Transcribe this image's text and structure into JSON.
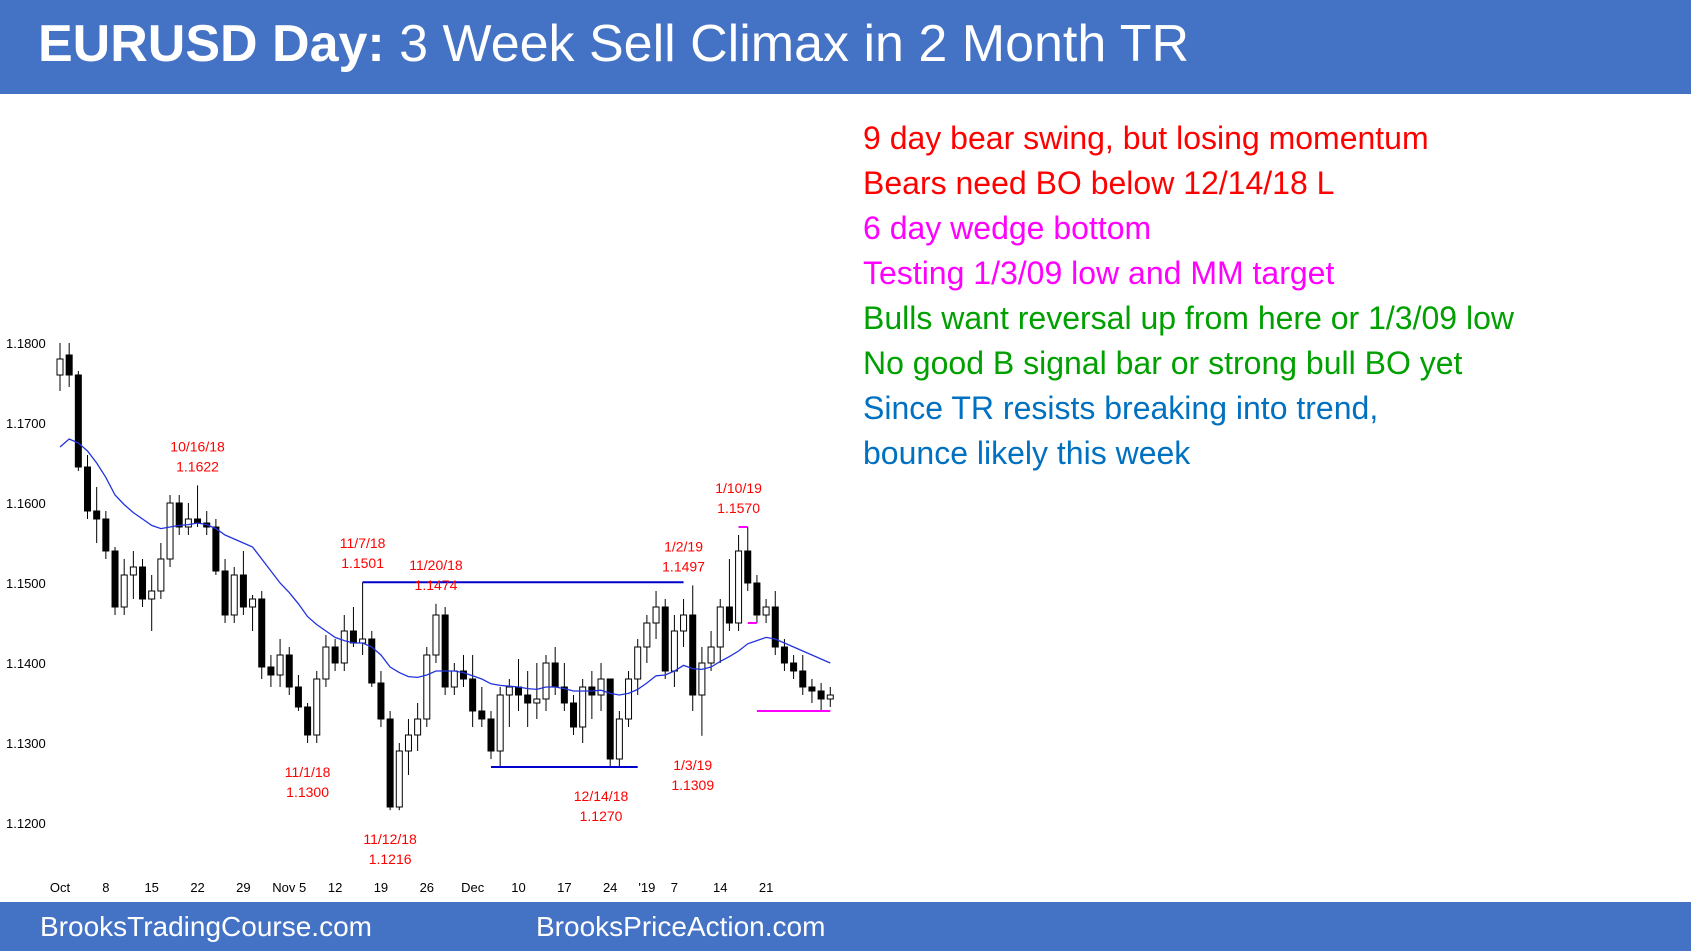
{
  "header": {
    "title_bold": "EURUSD Day:",
    "title_rest": " 3 Week Sell Climax in 2 Month TR"
  },
  "footer": {
    "left": "BrooksTradingCourse.com",
    "right": "BrooksPriceAction.com"
  },
  "notes": [
    {
      "text": "9 day bear swing, but losing momentum",
      "color": "#FF0000"
    },
    {
      "text": "Bears need BO below 12/14/18 L",
      "color": "#FF0000"
    },
    {
      "text": "6 day wedge bottom",
      "color": "#FF00FF"
    },
    {
      "text": "Testing 1/3/09 low and MM target",
      "color": "#FF00FF"
    },
    {
      "text": "Bulls want reversal up from here or 1/3/09 low",
      "color": "#00A000"
    },
    {
      "text": "No good B signal bar or strong bull BO yet",
      "color": "#00A000"
    },
    {
      "text": "Since TR resists breaking into trend,",
      "color": "#0070C0"
    },
    {
      "text": "bounce likely this week",
      "color": "#0070C0"
    }
  ],
  "chart_data": {
    "type": "candlestick",
    "ylim": [
      1.12,
      1.18
    ],
    "y_ticks": [
      "1.1800",
      "1.1700",
      "1.1600",
      "1.1500",
      "1.1400",
      "1.1300",
      "1.1200"
    ],
    "x_ticks": [
      {
        "label": "Oct",
        "i": 0
      },
      {
        "label": "8",
        "i": 5
      },
      {
        "label": "15",
        "i": 10
      },
      {
        "label": "22",
        "i": 15
      },
      {
        "label": "29",
        "i": 20
      },
      {
        "label": "Nov 5",
        "i": 25
      },
      {
        "label": "12",
        "i": 30
      },
      {
        "label": "19",
        "i": 35
      },
      {
        "label": "26",
        "i": 40
      },
      {
        "label": "Dec",
        "i": 45
      },
      {
        "label": "10",
        "i": 50
      },
      {
        "label": "17",
        "i": 55
      },
      {
        "label": "24",
        "i": 60
      },
      {
        "label": "'19",
        "i": 64
      },
      {
        "label": "7",
        "i": 67
      },
      {
        "label": "14",
        "i": 72
      },
      {
        "label": "21",
        "i": 77
      }
    ],
    "ohlc": [
      [
        1.176,
        1.18,
        1.174,
        1.178
      ],
      [
        1.1785,
        1.18,
        1.1745,
        1.176
      ],
      [
        1.176,
        1.1765,
        1.164,
        1.1645
      ],
      [
        1.1645,
        1.166,
        1.158,
        1.159
      ],
      [
        1.159,
        1.162,
        1.155,
        1.158
      ],
      [
        1.158,
        1.159,
        1.153,
        1.154
      ],
      [
        1.154,
        1.1545,
        1.146,
        1.147
      ],
      [
        1.147,
        1.153,
        1.146,
        1.151
      ],
      [
        1.151,
        1.154,
        1.148,
        1.152
      ],
      [
        1.152,
        1.153,
        1.147,
        1.148
      ],
      [
        1.148,
        1.151,
        1.144,
        1.149
      ],
      [
        1.149,
        1.155,
        1.148,
        1.153
      ],
      [
        1.153,
        1.161,
        1.152,
        1.16
      ],
      [
        1.16,
        1.161,
        1.156,
        1.157
      ],
      [
        1.157,
        1.16,
        1.156,
        1.158
      ],
      [
        1.158,
        1.1622,
        1.157,
        1.1575
      ],
      [
        1.1575,
        1.159,
        1.156,
        1.157
      ],
      [
        1.157,
        1.158,
        1.151,
        1.1515
      ],
      [
        1.1515,
        1.153,
        1.145,
        1.146
      ],
      [
        1.146,
        1.152,
        1.145,
        1.151
      ],
      [
        1.151,
        1.154,
        1.146,
        1.147
      ],
      [
        1.147,
        1.1485,
        1.144,
        1.148
      ],
      [
        1.148,
        1.149,
        1.138,
        1.1395
      ],
      [
        1.1395,
        1.141,
        1.137,
        1.1385
      ],
      [
        1.1385,
        1.143,
        1.137,
        1.141
      ],
      [
        1.141,
        1.142,
        1.136,
        1.137
      ],
      [
        1.137,
        1.1385,
        1.134,
        1.1345
      ],
      [
        1.1345,
        1.135,
        1.13,
        1.131
      ],
      [
        1.131,
        1.139,
        1.13,
        1.138
      ],
      [
        1.138,
        1.1435,
        1.137,
        1.142
      ],
      [
        1.142,
        1.143,
        1.139,
        1.14
      ],
      [
        1.14,
        1.146,
        1.139,
        1.144
      ],
      [
        1.144,
        1.147,
        1.142,
        1.1425
      ],
      [
        1.1425,
        1.1501,
        1.141,
        1.143
      ],
      [
        1.143,
        1.144,
        1.137,
        1.1375
      ],
      [
        1.1375,
        1.139,
        1.132,
        1.133
      ],
      [
        1.133,
        1.134,
        1.1216,
        1.122
      ],
      [
        1.122,
        1.13,
        1.1216,
        1.129
      ],
      [
        1.129,
        1.133,
        1.126,
        1.131
      ],
      [
        1.131,
        1.135,
        1.129,
        1.133
      ],
      [
        1.133,
        1.142,
        1.132,
        1.141
      ],
      [
        1.141,
        1.1474,
        1.14,
        1.146
      ],
      [
        1.146,
        1.147,
        1.136,
        1.137
      ],
      [
        1.137,
        1.14,
        1.136,
        1.139
      ],
      [
        1.139,
        1.141,
        1.137,
        1.138
      ],
      [
        1.138,
        1.141,
        1.132,
        1.134
      ],
      [
        1.134,
        1.137,
        1.132,
        1.133
      ],
      [
        1.133,
        1.134,
        1.128,
        1.129
      ],
      [
        1.129,
        1.137,
        1.127,
        1.136
      ],
      [
        1.136,
        1.138,
        1.132,
        1.137
      ],
      [
        1.137,
        1.1405,
        1.134,
        1.136
      ],
      [
        1.136,
        1.139,
        1.132,
        1.135
      ],
      [
        1.135,
        1.14,
        1.133,
        1.1355
      ],
      [
        1.1355,
        1.141,
        1.134,
        1.14
      ],
      [
        1.14,
        1.142,
        1.136,
        1.137
      ],
      [
        1.137,
        1.14,
        1.134,
        1.135
      ],
      [
        1.135,
        1.136,
        1.131,
        1.132
      ],
      [
        1.132,
        1.138,
        1.13,
        1.137
      ],
      [
        1.137,
        1.139,
        1.133,
        1.136
      ],
      [
        1.136,
        1.14,
        1.134,
        1.138
      ],
      [
        1.138,
        1.138,
        1.127,
        1.128
      ],
      [
        1.128,
        1.134,
        1.127,
        1.133
      ],
      [
        1.133,
        1.139,
        1.132,
        1.138
      ],
      [
        1.138,
        1.143,
        1.136,
        1.142
      ],
      [
        1.142,
        1.146,
        1.14,
        1.145
      ],
      [
        1.145,
        1.149,
        1.143,
        1.147
      ],
      [
        1.147,
        1.148,
        1.138,
        1.139
      ],
      [
        1.139,
        1.146,
        1.137,
        1.144
      ],
      [
        1.144,
        1.148,
        1.142,
        1.146
      ],
      [
        1.146,
        1.1497,
        1.134,
        1.136
      ],
      [
        1.136,
        1.142,
        1.1309,
        1.14
      ],
      [
        1.14,
        1.144,
        1.139,
        1.142
      ],
      [
        1.142,
        1.148,
        1.14,
        1.147
      ],
      [
        1.147,
        1.153,
        1.144,
        1.145
      ],
      [
        1.145,
        1.156,
        1.144,
        1.154
      ],
      [
        1.154,
        1.157,
        1.149,
        1.15
      ],
      [
        1.15,
        1.151,
        1.145,
        1.146
      ],
      [
        1.146,
        1.148,
        1.145,
        1.147
      ],
      [
        1.147,
        1.149,
        1.141,
        1.142
      ],
      [
        1.142,
        1.143,
        1.139,
        1.14
      ],
      [
        1.14,
        1.141,
        1.138,
        1.139
      ],
      [
        1.139,
        1.141,
        1.136,
        1.137
      ],
      [
        1.137,
        1.138,
        1.135,
        1.1365
      ],
      [
        1.1365,
        1.1375,
        1.134,
        1.1355
      ],
      [
        1.1355,
        1.137,
        1.1345,
        1.136
      ]
    ],
    "ema": [
      1.167,
      1.168,
      1.1675,
      1.1665,
      1.165,
      1.1632,
      1.161,
      1.1598,
      1.1588,
      1.158,
      1.1572,
      1.1568,
      1.157,
      1.1572,
      1.1573,
      1.1575,
      1.1573,
      1.1568,
      1.156,
      1.1555,
      1.155,
      1.1545,
      1.153,
      1.1515,
      1.15,
      1.1488,
      1.1474,
      1.1458,
      1.1448,
      1.144,
      1.1432,
      1.1428,
      1.1425,
      1.1425,
      1.142,
      1.141,
      1.1395,
      1.1388,
      1.1383,
      1.1382,
      1.1385,
      1.139,
      1.139,
      1.139,
      1.1388,
      1.1384,
      1.138,
      1.1374,
      1.1372,
      1.1371,
      1.137,
      1.1368,
      1.1367,
      1.137,
      1.137,
      1.1368,
      1.1365,
      1.1365,
      1.1365,
      1.1366,
      1.1362,
      1.136,
      1.1362,
      1.1367,
      1.1375,
      1.1384,
      1.1385,
      1.139,
      1.1397,
      1.1393,
      1.1392,
      1.1395,
      1.1402,
      1.1408,
      1.1415,
      1.1424,
      1.1428,
      1.1432,
      1.143,
      1.1425,
      1.142,
      1.1415,
      1.141,
      1.1405,
      1.14
    ],
    "annotations": [
      {
        "date": "10/16/18",
        "price": "1.1622",
        "i": 15
      },
      {
        "date": "11/7/18",
        "price": "1.1501",
        "i": 33
      },
      {
        "date": "11/20/18",
        "price": "1.1474",
        "i": 41
      },
      {
        "date": "11/1/18",
        "price": "1.1300",
        "i": 27
      },
      {
        "date": "11/12/18",
        "price": "1.1216",
        "i": 36
      },
      {
        "date": "12/14/18",
        "price": "1.1270",
        "i": 59
      },
      {
        "date": "1/2/19",
        "price": "1.1497",
        "i": 68
      },
      {
        "date": "1/3/19",
        "price": "1.1309",
        "i": 69
      },
      {
        "date": "1/10/19",
        "price": "1.1570",
        "i": 74
      }
    ],
    "lines": [
      {
        "color": "#0000CC",
        "level": 1.1501,
        "from": 33,
        "to": 68
      },
      {
        "color": "#0000CC",
        "level": 1.127,
        "from": 47,
        "to": 63
      },
      {
        "color": "#FF00FF",
        "level": 1.134,
        "from": 76,
        "to": 84
      },
      {
        "color": "#FF00FF",
        "level": 1.157,
        "from": 74,
        "to": 75
      },
      {
        "color": "#FF00FF",
        "level": 1.145,
        "from": 75,
        "to": 76
      }
    ],
    "ema_color": "#2233DD",
    "annotation_color": "#FF0000"
  }
}
